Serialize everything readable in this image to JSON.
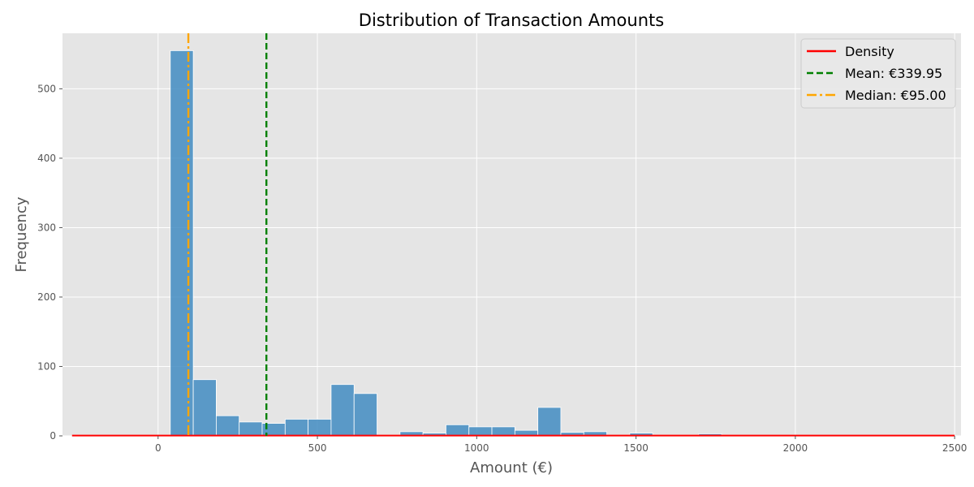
{
  "chart_data": {
    "type": "histogram",
    "title": "Distribution of Transaction Amounts",
    "xlabel": "Amount (€)",
    "ylabel": "Frequency",
    "xlim": [
      -300,
      2520
    ],
    "ylim": [
      0,
      580
    ],
    "xticks": [
      0,
      500,
      1000,
      1500,
      2000,
      2500
    ],
    "yticks": [
      0,
      100,
      200,
      300,
      400,
      500
    ],
    "grid": true,
    "bin_width": 72.1,
    "bins": [
      {
        "x0": 38.3,
        "x1": 110.4,
        "count": 555
      },
      {
        "x0": 110.4,
        "x1": 182.5,
        "count": 81
      },
      {
        "x0": 182.5,
        "x1": 254.6,
        "count": 29
      },
      {
        "x0": 254.6,
        "x1": 326.7,
        "count": 20
      },
      {
        "x0": 326.7,
        "x1": 398.8,
        "count": 18
      },
      {
        "x0": 398.8,
        "x1": 470.9,
        "count": 24
      },
      {
        "x0": 470.9,
        "x1": 543.0,
        "count": 24
      },
      {
        "x0": 543.0,
        "x1": 615.1,
        "count": 74
      },
      {
        "x0": 615.1,
        "x1": 687.2,
        "count": 61
      },
      {
        "x0": 687.2,
        "x1": 759.3,
        "count": 0
      },
      {
        "x0": 759.3,
        "x1": 831.4,
        "count": 6
      },
      {
        "x0": 831.4,
        "x1": 903.5,
        "count": 4
      },
      {
        "x0": 903.5,
        "x1": 975.6,
        "count": 16
      },
      {
        "x0": 975.6,
        "x1": 1047.7,
        "count": 13
      },
      {
        "x0": 1047.7,
        "x1": 1119.8,
        "count": 13
      },
      {
        "x0": 1119.8,
        "x1": 1191.9,
        "count": 8
      },
      {
        "x0": 1191.9,
        "x1": 1264.0,
        "count": 41
      },
      {
        "x0": 1264.0,
        "x1": 1336.1,
        "count": 5
      },
      {
        "x0": 1336.1,
        "x1": 1408.2,
        "count": 6
      },
      {
        "x0": 1408.2,
        "x1": 1480.3,
        "count": 0
      },
      {
        "x0": 1480.3,
        "x1": 1552.4,
        "count": 4
      },
      {
        "x0": 1552.4,
        "x1": 1624.5,
        "count": 0
      },
      {
        "x0": 1624.5,
        "x1": 1696.6,
        "count": 0
      },
      {
        "x0": 1696.6,
        "x1": 1768.7,
        "count": 3
      }
    ],
    "density": {
      "x": [
        -270,
        2500
      ],
      "y": [
        0.5,
        0.5
      ]
    },
    "reference_lines": [
      {
        "name": "mean",
        "value": 339.95,
        "color": "#008000",
        "style": "dashed"
      },
      {
        "name": "median",
        "value": 95.0,
        "color": "#ffa500",
        "style": "dashdot"
      }
    ],
    "legend": {
      "position": "top-right",
      "entries": [
        {
          "label": "Density",
          "color": "#ff0000",
          "style": "solid"
        },
        {
          "label": "Mean: €339.95",
          "color": "#008000",
          "style": "dashed"
        },
        {
          "label": "Median: €95.00",
          "color": "#ffa500",
          "style": "dashdot"
        }
      ]
    },
    "colors": {
      "bar": "#3a87c0",
      "panel_bg": "#e5e5e5",
      "grid": "#ffffff",
      "density": "#ff0000"
    }
  }
}
